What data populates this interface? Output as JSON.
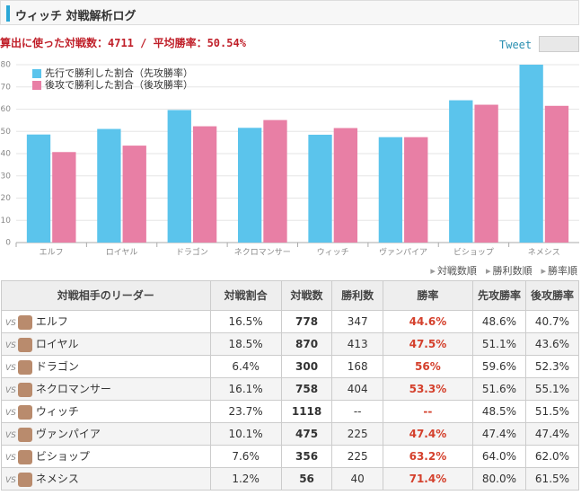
{
  "header": {
    "title": "ウィッチ 対戦解析ログ",
    "summary": "算出に使った対戦数：4711 / 平均勝率：50.54%",
    "tweet": "Tweet"
  },
  "chart_data": {
    "type": "bar",
    "categories": [
      "エルフ",
      "ロイヤル",
      "ドラゴン",
      "ネクロマンサー",
      "ウィッチ",
      "ヴァンパイア",
      "ビショップ",
      "ネメシス"
    ],
    "series": [
      {
        "name": "先行で勝利した割合（先攻勝率）",
        "color": "#5bc4ec",
        "values": [
          48.6,
          51.1,
          59.6,
          51.6,
          48.5,
          47.4,
          64.0,
          80.0
        ]
      },
      {
        "name": "後攻で勝利した割合（後攻勝率）",
        "color": "#e87fa5",
        "values": [
          40.7,
          43.6,
          52.3,
          55.1,
          51.5,
          47.4,
          62.0,
          61.5
        ]
      }
    ],
    "ylim": [
      0,
      80
    ],
    "yticks": [
      0,
      10,
      20,
      30,
      40,
      50,
      60,
      70,
      80
    ],
    "grid": true,
    "legend": "top-left"
  },
  "sort_links": [
    "対戦数順",
    "勝利数順",
    "勝率順"
  ],
  "table": {
    "vs": "VS",
    "columns": [
      "対戦相手のリーダー",
      "対戦割合",
      "対戦数",
      "勝利数",
      "勝率",
      "先攻勝率",
      "後攻勝率"
    ],
    "rows": [
      [
        "エルフ",
        "16.5%",
        "778",
        "347",
        "44.6%",
        "48.6%",
        "40.7%"
      ],
      [
        "ロイヤル",
        "18.5%",
        "870",
        "413",
        "47.5%",
        "51.1%",
        "43.6%"
      ],
      [
        "ドラゴン",
        "6.4%",
        "300",
        "168",
        "56%",
        "59.6%",
        "52.3%"
      ],
      [
        "ネクロマンサー",
        "16.1%",
        "758",
        "404",
        "53.3%",
        "51.6%",
        "55.1%"
      ],
      [
        "ウィッチ",
        "23.7%",
        "1118",
        "--",
        "--",
        "48.5%",
        "51.5%"
      ],
      [
        "ヴァンパイア",
        "10.1%",
        "475",
        "225",
        "47.4%",
        "47.4%",
        "47.4%"
      ],
      [
        "ビショップ",
        "7.6%",
        "356",
        "225",
        "63.2%",
        "64.0%",
        "62.0%"
      ],
      [
        "ネメシス",
        "1.2%",
        "56",
        "40",
        "71.4%",
        "80.0%",
        "61.5%"
      ]
    ]
  }
}
